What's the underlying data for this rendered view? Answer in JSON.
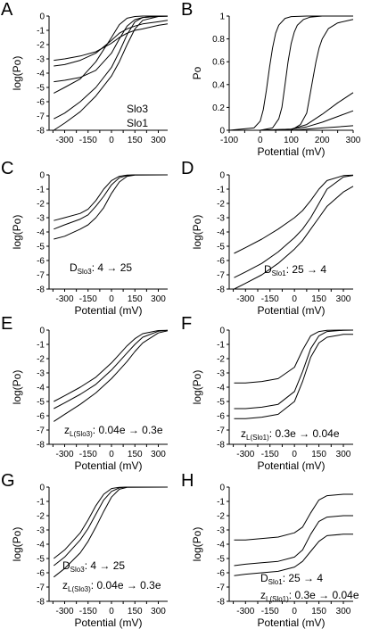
{
  "chart_data": [
    {
      "panel": "A",
      "type": "line",
      "xlabel": "",
      "ylabel": "log(Po)",
      "xlim": [
        -400,
        360
      ],
      "ylim": [
        -8,
        0
      ],
      "xticks": [
        "-300",
        "-150",
        "0",
        "150",
        "300"
      ],
      "yticks": [
        "0",
        "-1",
        "-2",
        "-3",
        "-4",
        "-5",
        "-6",
        "-7",
        "-8"
      ],
      "annotations": [
        {
          "text": "Slo3"
        },
        {
          "text": "Slo1"
        }
      ],
      "series": [
        {
          "x": [
            -370,
            -300,
            -200,
            -100,
            0,
            50,
            100,
            150,
            200,
            300,
            360
          ],
          "y": [
            -3.1,
            -3.0,
            -2.8,
            -2.5,
            -1.9,
            -1.5,
            -1.2,
            -1.0,
            -0.9,
            -0.65,
            -0.55
          ]
        },
        {
          "x": [
            -370,
            -300,
            -200,
            -100,
            0,
            50,
            100,
            150,
            200,
            300,
            360
          ],
          "y": [
            -3.5,
            -3.4,
            -3.1,
            -2.6,
            -1.7,
            -1.2,
            -0.9,
            -0.7,
            -0.55,
            -0.4,
            -0.3
          ]
        },
        {
          "x": [
            -370,
            -300,
            -200,
            -100,
            0,
            50,
            100,
            150,
            200,
            300,
            360
          ],
          "y": [
            -4.6,
            -4.5,
            -4.3,
            -3.8,
            -2.6,
            -1.6,
            -0.7,
            -0.25,
            -0.1,
            -0.02,
            -0.01
          ]
        },
        {
          "x": [
            -370,
            -300,
            -200,
            -100,
            0,
            50,
            100,
            150,
            200,
            300,
            360
          ],
          "y": [
            -5.4,
            -5.0,
            -4.4,
            -3.2,
            -1.5,
            -0.6,
            -0.15,
            -0.03,
            0,
            0,
            0
          ]
        },
        {
          "x": [
            -370,
            -300,
            -200,
            -100,
            0,
            50,
            100,
            150,
            200,
            300,
            360
          ],
          "y": [
            -7.2,
            -6.8,
            -6.0,
            -5.0,
            -3.6,
            -2.5,
            -1.3,
            -0.4,
            -0.1,
            -0.01,
            0
          ]
        },
        {
          "x": [
            -370,
            -300,
            -200,
            -100,
            0,
            50,
            100,
            150,
            200,
            300,
            360
          ],
          "y": [
            -8.0,
            -7.5,
            -6.7,
            -5.6,
            -4.2,
            -3.2,
            -2.0,
            -0.9,
            -0.3,
            -0.03,
            0
          ]
        }
      ]
    },
    {
      "panel": "B",
      "type": "line",
      "xlabel": "Potential (mV)",
      "ylabel": "Po",
      "xlim": [
        -100,
        300
      ],
      "ylim": [
        0,
        1
      ],
      "xticks": [
        "-100",
        "0",
        "100",
        "200",
        "300"
      ],
      "yticks": [
        "1",
        "0.8",
        "0.6",
        "0.4",
        "0.2",
        "0"
      ],
      "series": [
        {
          "x": [
            -100,
            -20,
            0,
            10,
            20,
            30,
            40,
            50,
            60,
            80,
            100,
            150,
            300
          ],
          "y": [
            0,
            0.02,
            0.08,
            0.18,
            0.35,
            0.55,
            0.72,
            0.85,
            0.92,
            0.98,
            0.995,
            1.0,
            1.0
          ]
        },
        {
          "x": [
            -100,
            0,
            40,
            60,
            70,
            80,
            90,
            100,
            110,
            120,
            140,
            160,
            200,
            300
          ],
          "y": [
            0,
            0,
            0.02,
            0.1,
            0.2,
            0.4,
            0.6,
            0.76,
            0.86,
            0.92,
            0.97,
            0.99,
            1.0,
            1.0
          ]
        },
        {
          "x": [
            -100,
            0,
            100,
            130,
            150,
            160,
            170,
            180,
            190,
            200,
            220,
            250,
            300
          ],
          "y": [
            0,
            0,
            0,
            0.05,
            0.15,
            0.3,
            0.45,
            0.6,
            0.72,
            0.8,
            0.89,
            0.94,
            0.97
          ]
        },
        {
          "x": [
            -100,
            0,
            100,
            150,
            200,
            250,
            300
          ],
          "y": [
            0,
            0,
            0.01,
            0.05,
            0.14,
            0.24,
            0.33
          ]
        },
        {
          "x": [
            -100,
            0,
            100,
            150,
            200,
            250,
            300
          ],
          "y": [
            0,
            0,
            0.01,
            0.03,
            0.07,
            0.12,
            0.17
          ]
        },
        {
          "x": [
            -100,
            0,
            100,
            150,
            200,
            250,
            300
          ],
          "y": [
            0,
            0,
            0,
            0.01,
            0.02,
            0.03,
            0.04
          ]
        }
      ]
    },
    {
      "panel": "C",
      "type": "line",
      "xlabel": "Potential (mV)",
      "ylabel": "log(Po)",
      "xlim": [
        -400,
        360
      ],
      "ylim": [
        -8,
        0
      ],
      "xticks": [
        "-300",
        "-150",
        "0",
        "150",
        "300"
      ],
      "yticks": [
        "0",
        "-1",
        "-2",
        "-3",
        "-4",
        "-5",
        "-6",
        "-7",
        "-8"
      ],
      "annotation": {
        "prefix": "D",
        "subscript": "Slo3",
        "text": ": 4 → 25"
      },
      "series": [
        {
          "x": [
            -370,
            -300,
            -200,
            -150,
            -100,
            -50,
            0,
            50,
            100,
            150,
            360
          ],
          "y": [
            -3.2,
            -3.0,
            -2.7,
            -2.4,
            -1.8,
            -1.0,
            -0.4,
            -0.1,
            -0.02,
            0,
            0
          ]
        },
        {
          "x": [
            -370,
            -300,
            -200,
            -150,
            -100,
            -50,
            0,
            50,
            100,
            150,
            360
          ],
          "y": [
            -3.8,
            -3.5,
            -3.1,
            -2.8,
            -2.2,
            -1.5,
            -0.7,
            -0.2,
            -0.05,
            0,
            0
          ]
        },
        {
          "x": [
            -370,
            -300,
            -200,
            -150,
            -100,
            -50,
            0,
            50,
            100,
            150,
            360
          ],
          "y": [
            -4.5,
            -4.3,
            -3.8,
            -3.5,
            -3.0,
            -2.3,
            -1.3,
            -0.5,
            -0.1,
            -0.01,
            0
          ]
        }
      ]
    },
    {
      "panel": "D",
      "type": "line",
      "xlabel": "Potential (mV)",
      "ylabel": "log(Po)",
      "xlim": [
        -400,
        360
      ],
      "ylim": [
        -8,
        0
      ],
      "xticks": [
        "-300",
        "-150",
        "0",
        "150",
        "300"
      ],
      "yticks": [
        "0",
        "-1",
        "-2",
        "-3",
        "-4",
        "-5",
        "-6",
        "-7",
        "-8"
      ],
      "annotation": {
        "prefix": "D",
        "subscript": "Slo1",
        "text": ": 25 → 4"
      },
      "series": [
        {
          "x": [
            -370,
            -300,
            -200,
            -100,
            0,
            50,
            100,
            150,
            200,
            300,
            360
          ],
          "y": [
            -5.5,
            -5.1,
            -4.5,
            -3.8,
            -3.0,
            -2.5,
            -1.8,
            -1.0,
            -0.4,
            -0.05,
            -0.01
          ]
        },
        {
          "x": [
            -370,
            -300,
            -200,
            -100,
            0,
            50,
            100,
            150,
            200,
            300,
            360
          ],
          "y": [
            -7.2,
            -6.8,
            -6.2,
            -5.4,
            -4.4,
            -3.8,
            -3.0,
            -2.0,
            -1.0,
            -0.15,
            -0.04
          ]
        },
        {
          "x": [
            -370,
            -300,
            -200,
            -100,
            0,
            50,
            100,
            150,
            200,
            300,
            360
          ],
          "y": [
            -8.0,
            -7.6,
            -7.0,
            -6.2,
            -5.2,
            -4.6,
            -3.8,
            -3.0,
            -2.2,
            -1.2,
            -0.8
          ]
        }
      ]
    },
    {
      "panel": "E",
      "type": "line",
      "xlabel": "Potential (mV)",
      "ylabel": "log(Po)",
      "xlim": [
        -400,
        360
      ],
      "ylim": [
        -8,
        0
      ],
      "xticks": [
        "-300",
        "-150",
        "0",
        "150",
        "300"
      ],
      "yticks": [
        "0",
        "-1",
        "-2",
        "-3",
        "-4",
        "-5",
        "-6",
        "-7",
        "-8"
      ],
      "annotation": {
        "prefix": "z",
        "subscript": "L(Slo3)",
        "text": ": 0.04e → 0.3e"
      },
      "series": [
        {
          "x": [
            -370,
            -300,
            -200,
            -100,
            0,
            50,
            100,
            150,
            200,
            300,
            360
          ],
          "y": [
            -5.0,
            -4.6,
            -4.0,
            -3.3,
            -2.3,
            -1.7,
            -1.1,
            -0.6,
            -0.25,
            -0.03,
            -0.01
          ]
        },
        {
          "x": [
            -370,
            -300,
            -200,
            -100,
            0,
            50,
            100,
            150,
            200,
            300,
            360
          ],
          "y": [
            -5.5,
            -5.1,
            -4.5,
            -3.8,
            -2.8,
            -2.2,
            -1.6,
            -1.0,
            -0.5,
            -0.08,
            -0.02
          ]
        },
        {
          "x": [
            -370,
            -300,
            -200,
            -100,
            0,
            50,
            100,
            150,
            200,
            300,
            360
          ],
          "y": [
            -6.4,
            -5.9,
            -5.2,
            -4.4,
            -3.4,
            -2.8,
            -2.2,
            -1.5,
            -0.9,
            -0.2,
            -0.05
          ]
        }
      ]
    },
    {
      "panel": "F",
      "type": "line",
      "xlabel": "Potential (mV)",
      "ylabel": "log(Po)",
      "xlim": [
        -400,
        360
      ],
      "ylim": [
        -8,
        0
      ],
      "xticks": [
        "-300",
        "-150",
        "0",
        "150",
        "300"
      ],
      "yticks": [
        "0",
        "-1",
        "-2",
        "-3",
        "-4",
        "-5",
        "-6",
        "-7",
        "-8"
      ],
      "annotation": {
        "prefix": "z",
        "subscript": "L(Slo1)",
        "text": ": 0.3e → 0.04e"
      },
      "series": [
        {
          "x": [
            -370,
            -300,
            -200,
            -100,
            0,
            50,
            100,
            150,
            200,
            300,
            360
          ],
          "y": [
            -3.7,
            -3.7,
            -3.6,
            -3.4,
            -2.6,
            -1.4,
            -0.4,
            -0.1,
            -0.02,
            0,
            0
          ]
        },
        {
          "x": [
            -370,
            -300,
            -200,
            -100,
            0,
            50,
            100,
            150,
            200,
            300,
            360
          ],
          "y": [
            -5.5,
            -5.5,
            -5.4,
            -5.2,
            -4.3,
            -2.9,
            -1.3,
            -0.4,
            -0.1,
            -0.01,
            0
          ]
        },
        {
          "x": [
            -370,
            -300,
            -200,
            -100,
            0,
            50,
            100,
            150,
            200,
            300,
            360
          ],
          "y": [
            -6.2,
            -6.2,
            -6.1,
            -5.9,
            -5.0,
            -3.6,
            -1.9,
            -0.9,
            -0.5,
            -0.3,
            -0.3
          ]
        }
      ]
    },
    {
      "panel": "G",
      "type": "line",
      "xlabel": "Potential (mV)",
      "ylabel": "log(Po)",
      "xlim": [
        -400,
        360
      ],
      "ylim": [
        -8,
        0
      ],
      "xticks": [
        "-300",
        "-150",
        "0",
        "150",
        "300"
      ],
      "yticks": [
        "0",
        "-1",
        "-2",
        "-3",
        "-4",
        "-5",
        "-6",
        "-7",
        "-8"
      ],
      "annotations": [
        {
          "prefix": "D",
          "subscript": "Slo3",
          "text": ": 4 → 25"
        },
        {
          "prefix": "z",
          "subscript": "L(Slo3)",
          "text": ": 0.04e → 0.3e"
        }
      ],
      "series": [
        {
          "x": [
            -370,
            -300,
            -200,
            -150,
            -100,
            -50,
            0,
            50,
            100,
            360
          ],
          "y": [
            -5.0,
            -4.4,
            -3.2,
            -2.3,
            -1.3,
            -0.5,
            -0.1,
            -0.01,
            0,
            0
          ]
        },
        {
          "x": [
            -370,
            -300,
            -200,
            -150,
            -100,
            -50,
            0,
            50,
            100,
            360
          ],
          "y": [
            -5.5,
            -4.9,
            -3.7,
            -2.9,
            -1.9,
            -0.9,
            -0.3,
            -0.05,
            0,
            0
          ]
        },
        {
          "x": [
            -370,
            -300,
            -200,
            -150,
            -100,
            -50,
            0,
            50,
            100,
            360
          ],
          "y": [
            -6.3,
            -5.7,
            -4.6,
            -3.8,
            -2.8,
            -1.7,
            -0.7,
            -0.15,
            -0.02,
            0
          ]
        }
      ]
    },
    {
      "panel": "H",
      "type": "line",
      "xlabel": "Potential (mV)",
      "ylabel": "log(Po)",
      "xlim": [
        -400,
        360
      ],
      "ylim": [
        -8,
        0
      ],
      "xticks": [
        "-300",
        "-150",
        "0",
        "150",
        "300"
      ],
      "yticks": [
        "0",
        "-1",
        "-2",
        "-3",
        "-4",
        "-5",
        "-6",
        "-7",
        "-8"
      ],
      "annotations": [
        {
          "prefix": "D",
          "subscript": "Slo1",
          "text": ": 25 → 4"
        },
        {
          "prefix": "z",
          "subscript": "L(Slo1)",
          "text": ": 0.3e → 0.04e"
        }
      ],
      "series": [
        {
          "x": [
            -370,
            -300,
            -200,
            -100,
            0,
            50,
            100,
            150,
            200,
            300,
            360
          ],
          "y": [
            -3.7,
            -3.7,
            -3.6,
            -3.5,
            -3.2,
            -2.8,
            -1.8,
            -0.9,
            -0.6,
            -0.5,
            -0.5
          ]
        },
        {
          "x": [
            -370,
            -300,
            -200,
            -100,
            0,
            50,
            100,
            150,
            200,
            300,
            360
          ],
          "y": [
            -5.5,
            -5.4,
            -5.3,
            -5.2,
            -4.9,
            -4.4,
            -3.3,
            -2.4,
            -2.1,
            -2.0,
            -2.0
          ]
        },
        {
          "x": [
            -370,
            -300,
            -200,
            -100,
            0,
            50,
            100,
            150,
            200,
            300,
            360
          ],
          "y": [
            -6.2,
            -6.1,
            -6.0,
            -5.9,
            -5.6,
            -5.2,
            -4.5,
            -3.8,
            -3.4,
            -3.3,
            -3.3
          ]
        }
      ]
    }
  ]
}
